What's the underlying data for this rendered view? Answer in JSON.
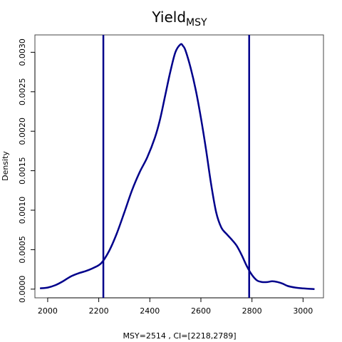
{
  "chart_data": {
    "type": "line",
    "title": {
      "main": "Yield",
      "subscript": "MSY"
    },
    "xlabel": "MSY=2514 , CI=[2218,2789]",
    "ylabel": "Density",
    "xlim": [
      1950,
      3080
    ],
    "ylim": [
      -0.00011,
      0.00322
    ],
    "x_ticks": [
      2000,
      2200,
      2400,
      2600,
      2800,
      3000
    ],
    "x_tick_labels": [
      "2000",
      "2200",
      "2400",
      "2600",
      "2800",
      "3000"
    ],
    "y_ticks": [
      0,
      0.0005,
      0.001,
      0.0015,
      0.002,
      0.0025,
      0.003
    ],
    "y_tick_labels": [
      "0.0000",
      "0.0005",
      "0.0010",
      "0.0015",
      "0.0020",
      "0.0025",
      "0.0030"
    ],
    "grid": false,
    "series": [
      {
        "color": "#00008B",
        "x": [
          1970,
          2000,
          2030,
          2060,
          2090,
          2120,
          2150,
          2180,
          2210,
          2240,
          2270,
          2300,
          2330,
          2360,
          2390,
          2420,
          2440,
          2460,
          2480,
          2500,
          2520,
          2530,
          2540,
          2560,
          2580,
          2600,
          2620,
          2640,
          2660,
          2680,
          2700,
          2720,
          2740,
          2760,
          2780,
          2800,
          2820,
          2840,
          2860,
          2880,
          2900,
          2920,
          2940,
          2970,
          3000,
          3045
        ],
        "y": [
          1e-05,
          2e-05,
          5e-05,
          0.0001,
          0.00016,
          0.0002,
          0.00023,
          0.00027,
          0.00033,
          0.00048,
          0.0007,
          0.00097,
          0.00125,
          0.00148,
          0.00167,
          0.00192,
          0.00215,
          0.00245,
          0.00275,
          0.003,
          0.0031,
          0.00308,
          0.00302,
          0.0028,
          0.00252,
          0.00217,
          0.00177,
          0.00133,
          0.00097,
          0.00078,
          0.0007,
          0.00063,
          0.00055,
          0.00043,
          0.00029,
          0.00018,
          0.00011,
          9e-05,
          9e-05,
          0.0001,
          9e-05,
          7e-05,
          4e-05,
          2e-05,
          1e-05,
          0
        ]
      }
    ],
    "vlines": [
      {
        "x": 2218,
        "color": "#00008B"
      },
      {
        "x": 2789,
        "color": "#00008B"
      }
    ]
  }
}
